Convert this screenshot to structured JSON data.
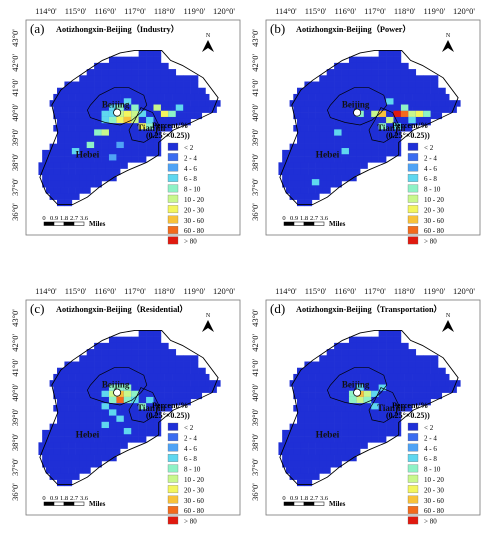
{
  "figure": {
    "panels": [
      {
        "letter": "(a)",
        "title": "Aotizhongxin-Beijing（Industry）",
        "hotspots": [
          {
            "lon": 116.25,
            "lat": 39.95,
            "cls": 3
          },
          {
            "lon": 116.5,
            "lat": 39.95,
            "cls": 5
          },
          {
            "lon": 116.75,
            "lat": 39.95,
            "cls": 6
          },
          {
            "lon": 117.0,
            "lat": 39.95,
            "cls": 5
          },
          {
            "lon": 116.25,
            "lat": 39.7,
            "cls": 4
          },
          {
            "lon": 116.5,
            "lat": 39.7,
            "cls": 6
          },
          {
            "lon": 116.75,
            "lat": 39.7,
            "cls": 7
          },
          {
            "lon": 117.0,
            "lat": 39.7,
            "cls": 5
          },
          {
            "lon": 116.0,
            "lat": 39.7,
            "cls": 3
          },
          {
            "lon": 117.25,
            "lat": 39.45,
            "cls": 6
          },
          {
            "lon": 117.5,
            "lat": 39.45,
            "cls": 4
          },
          {
            "lon": 117.75,
            "lat": 40.2,
            "cls": 5
          },
          {
            "lon": 118.0,
            "lat": 39.95,
            "cls": 6
          },
          {
            "lon": 118.25,
            "lat": 39.95,
            "cls": 4
          },
          {
            "lon": 118.5,
            "lat": 40.2,
            "cls": 3
          },
          {
            "lon": 115.75,
            "lat": 39.2,
            "cls": 4
          },
          {
            "lon": 116.0,
            "lat": 39.2,
            "cls": 5
          },
          {
            "lon": 115.5,
            "lat": 38.7,
            "cls": 4
          },
          {
            "lon": 115.0,
            "lat": 38.45,
            "cls": 3
          },
          {
            "lon": 116.75,
            "lat": 40.45,
            "cls": 3
          },
          {
            "lon": 117.0,
            "lat": 40.2,
            "cls": 4
          },
          {
            "lon": 116.5,
            "lat": 40.2,
            "cls": 4
          },
          {
            "lon": 116.25,
            "lat": 40.2,
            "cls": 3
          },
          {
            "lon": 116.0,
            "lat": 39.95,
            "cls": 3
          },
          {
            "lon": 117.25,
            "lat": 39.95,
            "cls": 3
          },
          {
            "lon": 117.5,
            "lat": 39.7,
            "cls": 3
          },
          {
            "lon": 116.5,
            "lat": 38.7,
            "cls": 2
          },
          {
            "lon": 116.25,
            "lat": 38.2,
            "cls": 2
          }
        ]
      },
      {
        "letter": "(b)",
        "title": "Aotizhongxin-Beijing（Power）",
        "hotspots": [
          {
            "lon": 117.75,
            "lat": 39.95,
            "cls": 9
          },
          {
            "lon": 118.0,
            "lat": 39.95,
            "cls": 8
          },
          {
            "lon": 118.25,
            "lat": 39.95,
            "cls": 5
          },
          {
            "lon": 118.5,
            "lat": 39.95,
            "cls": 6
          },
          {
            "lon": 117.25,
            "lat": 39.95,
            "cls": 7
          },
          {
            "lon": 117.0,
            "lat": 39.95,
            "cls": 5
          },
          {
            "lon": 117.5,
            "lat": 39.7,
            "cls": 5
          },
          {
            "lon": 117.25,
            "lat": 39.45,
            "cls": 4
          },
          {
            "lon": 118.75,
            "lat": 39.95,
            "cls": 4
          },
          {
            "lon": 116.5,
            "lat": 39.95,
            "cls": 4
          },
          {
            "lon": 118.0,
            "lat": 40.2,
            "cls": 4
          },
          {
            "lon": 117.75,
            "lat": 39.45,
            "cls": 3
          },
          {
            "lon": 115.75,
            "lat": 39.2,
            "cls": 3
          },
          {
            "lon": 116.0,
            "lat": 38.45,
            "cls": 3
          },
          {
            "lon": 115.0,
            "lat": 37.2,
            "cls": 3
          },
          {
            "lon": 118.25,
            "lat": 39.7,
            "cls": 3
          },
          {
            "lon": 117.5,
            "lat": 40.45,
            "cls": 3
          }
        ]
      },
      {
        "letter": "(c)",
        "title": "Aotizhongxin-Beijing（Residential）",
        "hotspots": [
          {
            "lon": 116.25,
            "lat": 39.95,
            "cls": 5
          },
          {
            "lon": 116.5,
            "lat": 39.95,
            "cls": 7
          },
          {
            "lon": 116.75,
            "lat": 39.95,
            "cls": 5
          },
          {
            "lon": 116.5,
            "lat": 40.2,
            "cls": 4
          },
          {
            "lon": 116.25,
            "lat": 40.2,
            "cls": 4
          },
          {
            "lon": 116.75,
            "lat": 40.2,
            "cls": 4
          },
          {
            "lon": 116.5,
            "lat": 39.7,
            "cls": 8
          },
          {
            "lon": 116.75,
            "lat": 39.7,
            "cls": 4
          },
          {
            "lon": 116.25,
            "lat": 39.7,
            "cls": 4
          },
          {
            "lon": 117.0,
            "lat": 39.95,
            "cls": 4
          },
          {
            "lon": 117.0,
            "lat": 39.7,
            "cls": 3
          },
          {
            "lon": 117.25,
            "lat": 39.45,
            "cls": 4
          },
          {
            "lon": 116.0,
            "lat": 39.45,
            "cls": 3
          },
          {
            "lon": 116.25,
            "lat": 39.2,
            "cls": 3
          },
          {
            "lon": 116.5,
            "lat": 38.95,
            "cls": 3
          },
          {
            "lon": 116.0,
            "lat": 38.7,
            "cls": 3
          },
          {
            "lon": 116.75,
            "lat": 38.45,
            "cls": 3
          },
          {
            "lon": 117.5,
            "lat": 39.7,
            "cls": 3
          },
          {
            "lon": 116.0,
            "lat": 39.95,
            "cls": 3
          }
        ]
      },
      {
        "letter": "(d)",
        "title": "Aotizhongxin-Beijing（Transportation）",
        "hotspots": [
          {
            "lon": 116.25,
            "lat": 39.95,
            "cls": 4
          },
          {
            "lon": 116.5,
            "lat": 39.95,
            "cls": 7
          },
          {
            "lon": 116.75,
            "lat": 39.95,
            "cls": 5
          },
          {
            "lon": 116.5,
            "lat": 39.7,
            "cls": 5
          },
          {
            "lon": 116.25,
            "lat": 39.7,
            "cls": 4
          },
          {
            "lon": 116.75,
            "lat": 39.7,
            "cls": 4
          },
          {
            "lon": 116.5,
            "lat": 40.2,
            "cls": 3
          },
          {
            "lon": 117.0,
            "lat": 39.95,
            "cls": 3
          },
          {
            "lon": 117.25,
            "lat": 40.2,
            "cls": 3
          },
          {
            "lon": 117.0,
            "lat": 39.45,
            "cls": 3
          }
        ]
      }
    ],
    "lon_ticks": [
      "114°0'",
      "115°0'",
      "116°0'",
      "117°0'",
      "118°0'",
      "119°0'",
      "120°0'"
    ],
    "lat_ticks": [
      "36°0'",
      "37°0'",
      "38°0'",
      "39°0'",
      "40°0'",
      "41°0'",
      "42°0'",
      "43°0'"
    ],
    "places": {
      "beijing": "Beijing",
      "tianjin": "Tianjin",
      "hebei": "Hebei"
    },
    "north_label": "N",
    "legend": {
      "title_line1": "Percent/%",
      "title_line2": "(0.25°×0.25))",
      "classes": [
        {
          "label": "< 2",
          "color": "#1f2fd6"
        },
        {
          "label": "2 - 4",
          "color": "#3a6cf0"
        },
        {
          "label": "4 - 6",
          "color": "#4fa3f5"
        },
        {
          "label": "6 - 8",
          "color": "#5fd7ef"
        },
        {
          "label": "8 - 10",
          "color": "#8ef2c6"
        },
        {
          "label": "10 - 20",
          "color": "#c8f78c"
        },
        {
          "label": "20 - 30",
          "color": "#f3f55e"
        },
        {
          "label": "30 - 60",
          "color": "#f8c23a"
        },
        {
          "label": "60 - 80",
          "color": "#f36a1c"
        },
        {
          "label": "> 80",
          "color": "#e01a10"
        }
      ]
    },
    "scalebar": {
      "ticks": [
        "0",
        "0.9",
        "1.8",
        "2.7",
        "3.6"
      ],
      "unit": "Miles"
    },
    "colors": {
      "background": "#1f2fd6",
      "boundary": "#000000",
      "site": "#ffffff"
    }
  }
}
